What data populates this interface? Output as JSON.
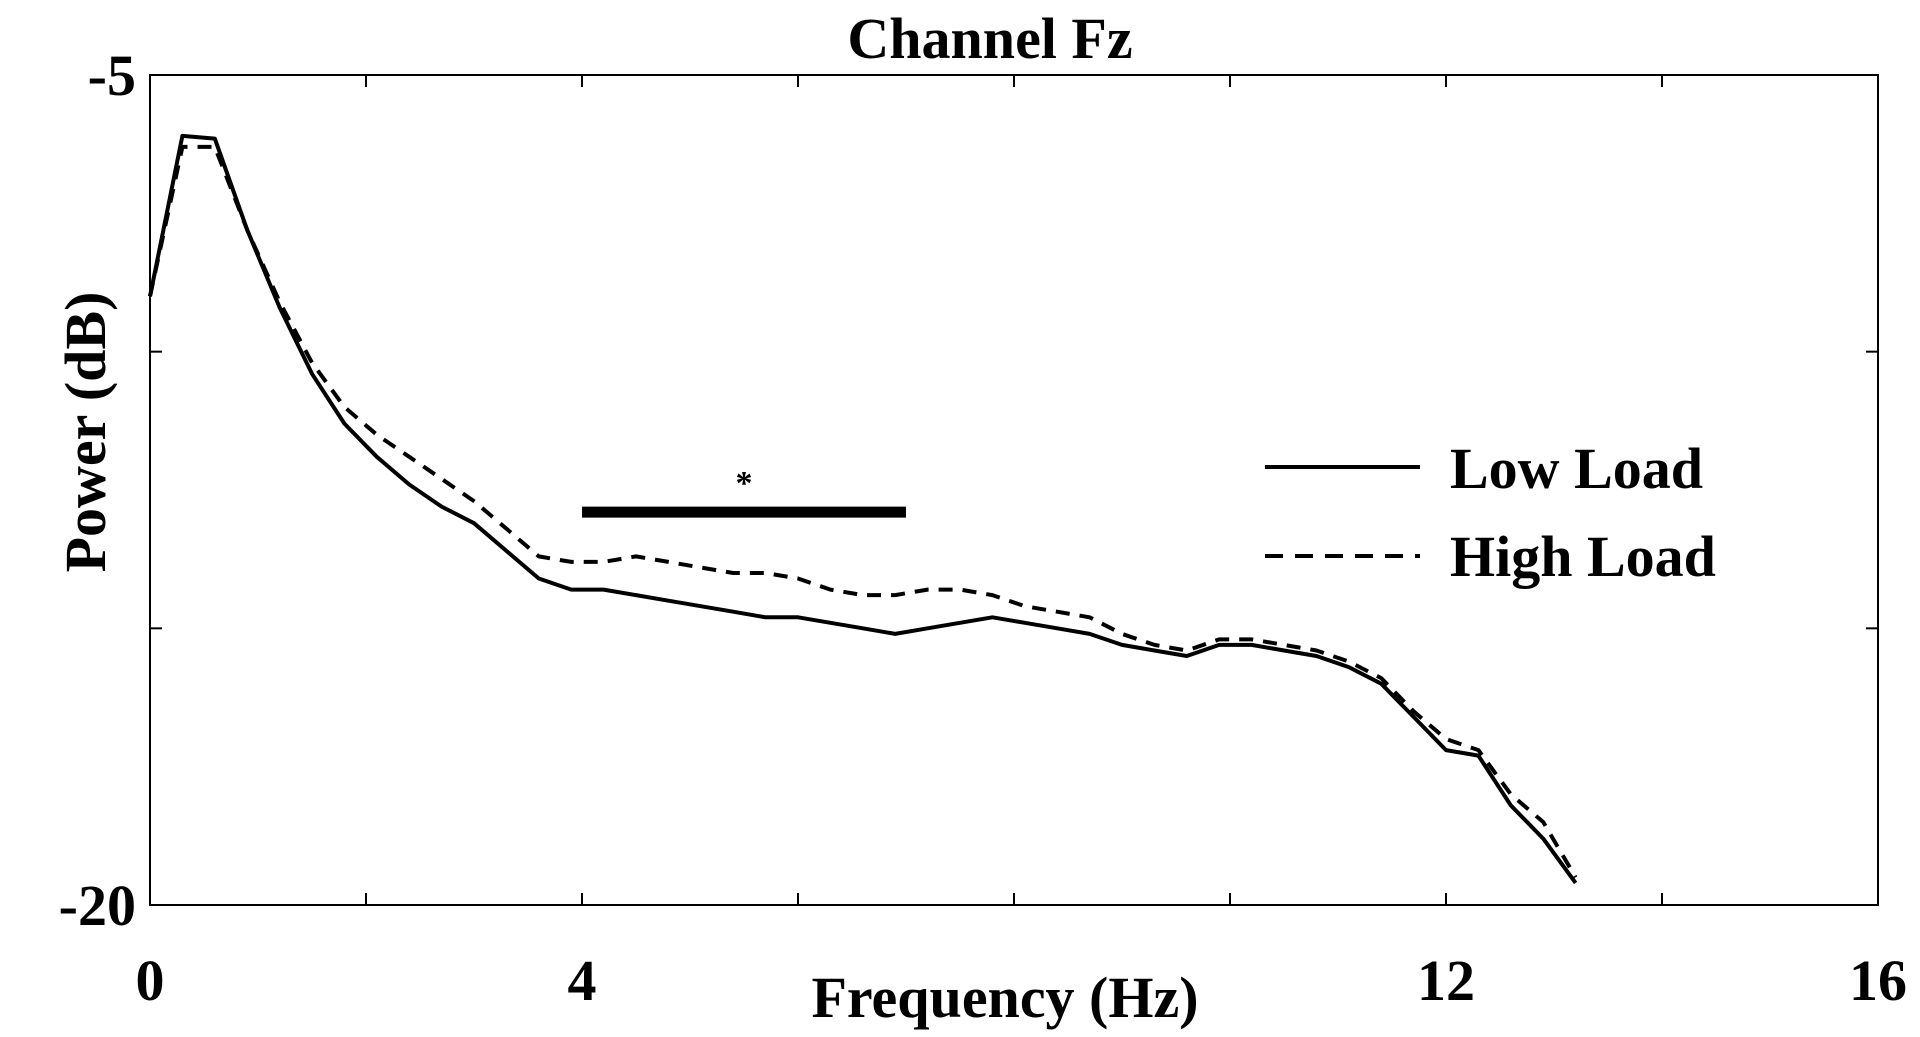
{
  "chart_data": {
    "type": "line",
    "title": "Channel Fz",
    "xlabel": "Frequency (Hz)",
    "ylabel": "Power (dB)",
    "xlim": [
      0,
      16
    ],
    "ylim": [
      -20,
      -5
    ],
    "xticks": [
      0,
      2,
      4,
      6,
      8,
      10,
      12,
      14,
      16
    ],
    "xtick_labels": [
      {
        "value": 0,
        "label": "0"
      },
      {
        "value": 4,
        "label": "4"
      },
      {
        "value": 12,
        "label": "12"
      },
      {
        "value": 16,
        "label": "16"
      }
    ],
    "yticks": [
      -20,
      -15,
      -10,
      -5
    ],
    "ytick_labels": [
      {
        "value": -5,
        "label": "-5"
      },
      {
        "value": -20,
        "label": "-20"
      }
    ],
    "grid": false,
    "legend_position": "right",
    "series": [
      {
        "name": "Low Load",
        "style": "solid",
        "x": [
          0,
          0.3,
          0.6,
          0.9,
          1.2,
          1.5,
          1.8,
          2.1,
          2.4,
          2.7,
          3.0,
          3.3,
          3.6,
          3.9,
          4.2,
          4.5,
          4.8,
          5.1,
          5.4,
          5.7,
          6.0,
          6.3,
          6.6,
          6.9,
          7.2,
          7.5,
          7.8,
          8.1,
          8.4,
          8.7,
          9.0,
          9.3,
          9.6,
          9.9,
          10.2,
          10.5,
          10.8,
          11.1,
          11.4,
          11.7,
          12.0,
          12.3,
          12.6,
          12.9,
          13.2
        ],
        "y": [
          -9.0,
          -6.1,
          -6.15,
          -7.8,
          -9.2,
          -10.4,
          -11.3,
          -11.9,
          -12.4,
          -12.8,
          -13.1,
          -13.6,
          -14.1,
          -14.3,
          -14.3,
          -14.4,
          -14.5,
          -14.6,
          -14.7,
          -14.8,
          -14.8,
          -14.9,
          -15.0,
          -15.1,
          -15.0,
          -14.9,
          -14.8,
          -14.9,
          -15.0,
          -15.1,
          -15.3,
          -15.4,
          -15.5,
          -15.3,
          -15.3,
          -15.4,
          -15.5,
          -15.7,
          -16.0,
          -16.6,
          -17.2,
          -17.3,
          -18.2,
          -18.8,
          -19.6
        ]
      },
      {
        "name": "High Load",
        "style": "dashed",
        "x": [
          0,
          0.3,
          0.6,
          0.9,
          1.2,
          1.5,
          1.8,
          2.1,
          2.4,
          2.7,
          3.0,
          3.3,
          3.6,
          3.9,
          4.2,
          4.5,
          4.8,
          5.1,
          5.4,
          5.7,
          6.0,
          6.3,
          6.6,
          6.9,
          7.2,
          7.5,
          7.8,
          8.1,
          8.4,
          8.7,
          9.0,
          9.3,
          9.6,
          9.9,
          10.2,
          10.5,
          10.8,
          11.1,
          11.4,
          11.7,
          12.0,
          12.3,
          12.6,
          12.9,
          13.2
        ],
        "y": [
          -9.0,
          -6.3,
          -6.3,
          -7.8,
          -9.1,
          -10.2,
          -11.0,
          -11.5,
          -11.9,
          -12.3,
          -12.7,
          -13.2,
          -13.7,
          -13.8,
          -13.8,
          -13.7,
          -13.8,
          -13.9,
          -14.0,
          -14.0,
          -14.1,
          -14.3,
          -14.4,
          -14.4,
          -14.3,
          -14.3,
          -14.4,
          -14.6,
          -14.7,
          -14.8,
          -15.1,
          -15.3,
          -15.4,
          -15.2,
          -15.2,
          -15.3,
          -15.4,
          -15.6,
          -15.9,
          -16.5,
          -17.0,
          -17.2,
          -18.0,
          -18.5,
          -19.5
        ]
      }
    ],
    "annotations": [
      {
        "type": "significance-bar",
        "x_start": 4.0,
        "x_end": 7.0,
        "y": -12.9,
        "label": "*"
      }
    ]
  },
  "legend": {
    "items": [
      {
        "label": "Low Load",
        "style": "solid"
      },
      {
        "label": "High Load",
        "style": "dashed"
      }
    ]
  }
}
